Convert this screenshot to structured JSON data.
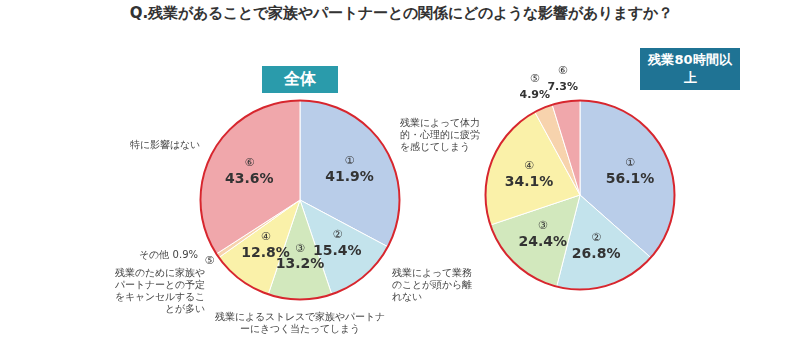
{
  "title": "Q.残業があることで家族やパートナーとの関係にどのような影響がありますか？",
  "chart_data": [
    {
      "type": "pie",
      "title": "全体",
      "categories": [
        "①",
        "②",
        "③",
        "④",
        "⑤",
        "⑥"
      ],
      "category_texts": [
        "残業によって体力的・心理的に疲労を感じてしまう",
        "残業によって業務のことが頭から離れない",
        "残業によるストレスで家族やパートナーにきつく当たってしまう",
        "残業のために家族やパートナーとの予定をキャンセルすることが多い",
        "その他",
        "特に影響はない"
      ],
      "values": [
        41.9,
        15.4,
        13.2,
        12.8,
        0.9,
        43.6
      ],
      "value_labels": [
        "41.9%",
        "15.4%",
        "13.2%",
        "12.8%",
        "0.9%",
        "43.6%"
      ],
      "colors": [
        "#b9cde9",
        "#c3e3ec",
        "#d2e8bd",
        "#faf1a9",
        "#f7d3ad",
        "#f0a7ab"
      ],
      "data_labels": true
    },
    {
      "type": "pie",
      "title": "残業80時間以上",
      "categories": [
        "①",
        "②",
        "③",
        "④",
        "⑤",
        "⑥"
      ],
      "values": [
        56.1,
        26.8,
        24.4,
        34.1,
        4.9,
        7.3
      ],
      "value_labels": [
        "56.1%",
        "26.8%",
        "24.4%",
        "34.1%",
        "4.9%",
        "7.3%"
      ],
      "colors": [
        "#b9cde9",
        "#c3e3ec",
        "#d2e8bd",
        "#faf1a9",
        "#f7d3ad",
        "#f0a7ab"
      ],
      "data_labels": true
    }
  ]
}
